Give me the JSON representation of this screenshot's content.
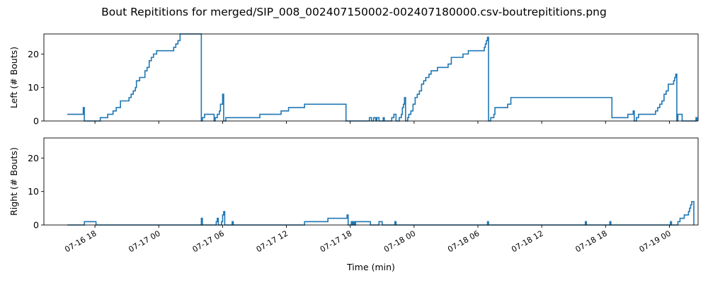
{
  "colors": {
    "series": "#1f77b4",
    "axis": "#000000",
    "background": "#ffffff"
  },
  "chart_data": {
    "type": "line",
    "step": true,
    "title": "Bout Repititions for merged/SIP_008_002407150002-002407180000.csv-boutrepititions.png",
    "xlabel": "Time (min)",
    "shared_x": true,
    "x_range": [
      "2024-07-16 13:12",
      "2024-07-19 02:42"
    ],
    "x_ticks": [
      {
        "date": "2024-07-16 18:00",
        "label": "07-16 18"
      },
      {
        "date": "2024-07-17 00:00",
        "label": "07-17 00"
      },
      {
        "date": "2024-07-17 06:00",
        "label": "07-17 06"
      },
      {
        "date": "2024-07-17 12:00",
        "label": "07-17 12"
      },
      {
        "date": "2024-07-17 18:00",
        "label": "07-17 18"
      },
      {
        "date": "2024-07-18 00:00",
        "label": "07-18 00"
      },
      {
        "date": "2024-07-18 06:00",
        "label": "07-18 06"
      },
      {
        "date": "2024-07-18 12:00",
        "label": "07-18 12"
      },
      {
        "date": "2024-07-18 18:00",
        "label": "07-18 18"
      },
      {
        "date": "2024-07-19 00:00",
        "label": "07-19 00"
      }
    ],
    "panels": [
      {
        "ylabel": "Left (# Bouts)",
        "ylim": [
          0,
          26
        ],
        "y_ticks": [
          0,
          10,
          20
        ],
        "series": [
          {
            "points": [
              [
                "2024-07-16 15:24",
                2
              ],
              [
                "2024-07-16 16:54",
                4
              ],
              [
                "2024-07-16 17:00",
                0
              ],
              [
                "2024-07-16 18:30",
                1
              ],
              [
                "2024-07-16 19:12",
                2
              ],
              [
                "2024-07-16 19:42",
                3
              ],
              [
                "2024-07-16 20:00",
                4
              ],
              [
                "2024-07-16 20:24",
                6
              ],
              [
                "2024-07-16 21:12",
                7
              ],
              [
                "2024-07-16 21:24",
                8
              ],
              [
                "2024-07-16 21:36",
                9
              ],
              [
                "2024-07-16 21:48",
                10
              ],
              [
                "2024-07-16 21:54",
                12
              ],
              [
                "2024-07-16 22:12",
                13
              ],
              [
                "2024-07-16 22:42",
                15
              ],
              [
                "2024-07-16 22:54",
                16
              ],
              [
                "2024-07-16 23:06",
                18
              ],
              [
                "2024-07-16 23:18",
                19
              ],
              [
                "2024-07-16 23:30",
                20
              ],
              [
                "2024-07-16 23:48",
                21
              ],
              [
                "2024-07-17 01:24",
                22
              ],
              [
                "2024-07-17 01:36",
                23
              ],
              [
                "2024-07-17 01:48",
                24
              ],
              [
                "2024-07-17 02:00",
                26
              ],
              [
                "2024-07-17 04:00",
                0
              ],
              [
                "2024-07-17 04:06",
                1
              ],
              [
                "2024-07-17 04:18",
                2
              ],
              [
                "2024-07-17 05:12",
                0
              ],
              [
                "2024-07-17 05:18",
                1
              ],
              [
                "2024-07-17 05:30",
                2
              ],
              [
                "2024-07-17 05:42",
                3
              ],
              [
                "2024-07-17 05:48",
                5
              ],
              [
                "2024-07-17 06:00",
                8
              ],
              [
                "2024-07-17 06:06",
                0
              ],
              [
                "2024-07-17 06:18",
                1
              ],
              [
                "2024-07-17 09:30",
                2
              ],
              [
                "2024-07-17 11:30",
                3
              ],
              [
                "2024-07-17 12:12",
                4
              ],
              [
                "2024-07-17 13:42",
                5
              ],
              [
                "2024-07-17 17:36",
                0
              ],
              [
                "2024-07-17 19:48",
                1
              ],
              [
                "2024-07-17 20:00",
                0
              ],
              [
                "2024-07-17 20:12",
                1
              ],
              [
                "2024-07-17 20:24",
                0
              ],
              [
                "2024-07-17 20:30",
                1
              ],
              [
                "2024-07-17 20:42",
                0
              ],
              [
                "2024-07-17 21:06",
                1
              ],
              [
                "2024-07-17 21:12",
                0
              ],
              [
                "2024-07-17 21:54",
                1
              ],
              [
                "2024-07-17 22:06",
                2
              ],
              [
                "2024-07-17 22:18",
                0
              ],
              [
                "2024-07-17 22:36",
                1
              ],
              [
                "2024-07-17 22:48",
                2
              ],
              [
                "2024-07-17 22:54",
                4
              ],
              [
                "2024-07-17 23:00",
                5
              ],
              [
                "2024-07-17 23:06",
                7
              ],
              [
                "2024-07-17 23:12",
                0
              ],
              [
                "2024-07-17 23:24",
                1
              ],
              [
                "2024-07-17 23:30",
                2
              ],
              [
                "2024-07-17 23:42",
                3
              ],
              [
                "2024-07-17 23:54",
                5
              ],
              [
                "2024-07-18 00:06",
                7
              ],
              [
                "2024-07-18 00:18",
                8
              ],
              [
                "2024-07-18 00:30",
                9
              ],
              [
                "2024-07-18 00:42",
                11
              ],
              [
                "2024-07-18 00:54",
                12
              ],
              [
                "2024-07-18 01:06",
                13
              ],
              [
                "2024-07-18 01:24",
                14
              ],
              [
                "2024-07-18 01:36",
                15
              ],
              [
                "2024-07-18 02:12",
                16
              ],
              [
                "2024-07-18 03:12",
                17
              ],
              [
                "2024-07-18 03:30",
                19
              ],
              [
                "2024-07-18 04:36",
                20
              ],
              [
                "2024-07-18 05:06",
                21
              ],
              [
                "2024-07-18 06:36",
                22
              ],
              [
                "2024-07-18 06:42",
                23
              ],
              [
                "2024-07-18 06:48",
                24
              ],
              [
                "2024-07-18 06:54",
                25
              ],
              [
                "2024-07-18 07:00",
                0
              ],
              [
                "2024-07-18 07:12",
                1
              ],
              [
                "2024-07-18 07:30",
                2
              ],
              [
                "2024-07-18 07:36",
                4
              ],
              [
                "2024-07-18 08:48",
                5
              ],
              [
                "2024-07-18 09:06",
                7
              ],
              [
                "2024-07-18 18:36",
                1
              ],
              [
                "2024-07-18 20:06",
                2
              ],
              [
                "2024-07-18 20:36",
                3
              ],
              [
                "2024-07-18 20:42",
                0
              ],
              [
                "2024-07-18 20:54",
                1
              ],
              [
                "2024-07-18 21:06",
                2
              ],
              [
                "2024-07-18 22:42",
                3
              ],
              [
                "2024-07-18 22:54",
                4
              ],
              [
                "2024-07-18 23:06",
                5
              ],
              [
                "2024-07-18 23:18",
                6
              ],
              [
                "2024-07-18 23:30",
                8
              ],
              [
                "2024-07-18 23:42",
                9
              ],
              [
                "2024-07-18 23:54",
                11
              ],
              [
                "2024-07-19 00:24",
                12
              ],
              [
                "2024-07-19 00:30",
                13
              ],
              [
                "2024-07-19 00:36",
                14
              ],
              [
                "2024-07-19 00:42",
                0
              ],
              [
                "2024-07-19 00:48",
                2
              ],
              [
                "2024-07-19 01:12",
                0
              ],
              [
                "2024-07-19 02:30",
                1
              ],
              [
                "2024-07-19 02:36",
                0
              ]
            ]
          }
        ]
      },
      {
        "ylabel": "Right (# Bouts)",
        "ylim": [
          0,
          26
        ],
        "y_ticks": [
          0,
          10,
          20
        ],
        "series": [
          {
            "points": [
              [
                "2024-07-16 15:24",
                0
              ],
              [
                "2024-07-16 17:00",
                1
              ],
              [
                "2024-07-16 18:06",
                0
              ],
              [
                "2024-07-17 04:00",
                2
              ],
              [
                "2024-07-17 04:06",
                0
              ],
              [
                "2024-07-17 05:24",
                1
              ],
              [
                "2024-07-17 05:30",
                2
              ],
              [
                "2024-07-17 05:36",
                0
              ],
              [
                "2024-07-17 05:54",
                1
              ],
              [
                "2024-07-17 06:00",
                3
              ],
              [
                "2024-07-17 06:06",
                4
              ],
              [
                "2024-07-17 06:12",
                0
              ],
              [
                "2024-07-17 06:54",
                1
              ],
              [
                "2024-07-17 07:00",
                0
              ],
              [
                "2024-07-17 13:42",
                1
              ],
              [
                "2024-07-17 15:54",
                2
              ],
              [
                "2024-07-17 17:42",
                3
              ],
              [
                "2024-07-17 17:48",
                0
              ],
              [
                "2024-07-17 18:06",
                1
              ],
              [
                "2024-07-17 18:12",
                0
              ],
              [
                "2024-07-17 18:18",
                1
              ],
              [
                "2024-07-17 18:24",
                0
              ],
              [
                "2024-07-17 18:30",
                1
              ],
              [
                "2024-07-17 19:54",
                0
              ],
              [
                "2024-07-17 20:42",
                1
              ],
              [
                "2024-07-17 21:00",
                0
              ],
              [
                "2024-07-17 22:12",
                1
              ],
              [
                "2024-07-17 22:18",
                0
              ],
              [
                "2024-07-18 06:54",
                1
              ],
              [
                "2024-07-18 07:00",
                0
              ],
              [
                "2024-07-18 16:06",
                1
              ],
              [
                "2024-07-18 16:12",
                0
              ],
              [
                "2024-07-18 18:24",
                1
              ],
              [
                "2024-07-18 18:30",
                0
              ],
              [
                "2024-07-19 00:06",
                1
              ],
              [
                "2024-07-19 00:12",
                0
              ],
              [
                "2024-07-19 00:48",
                1
              ],
              [
                "2024-07-19 01:00",
                2
              ],
              [
                "2024-07-19 01:24",
                3
              ],
              [
                "2024-07-19 01:48",
                4
              ],
              [
                "2024-07-19 01:54",
                5
              ],
              [
                "2024-07-19 02:00",
                6
              ],
              [
                "2024-07-19 02:06",
                7
              ],
              [
                "2024-07-19 02:18",
                0
              ]
            ]
          }
        ]
      }
    ]
  }
}
